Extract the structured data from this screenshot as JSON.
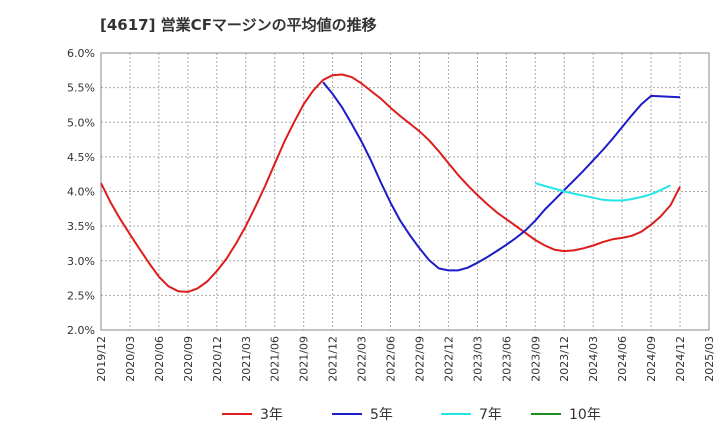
{
  "chart_data": {
    "type": "line",
    "title": "[4617]  営業CFマージンの平均値の推移",
    "xlabel": "",
    "ylabel": "",
    "ylim": [
      2.0,
      6.0
    ],
    "xlim": [
      "2019-12",
      "2025-03"
    ],
    "y_ticks": [
      "2.0%",
      "2.5%",
      "3.0%",
      "3.5%",
      "4.0%",
      "4.5%",
      "5.0%",
      "5.5%",
      "6.0%"
    ],
    "x_ticks": [
      "2019/12",
      "2020/03",
      "2020/06",
      "2020/09",
      "2020/12",
      "2021/03",
      "2021/06",
      "2021/09",
      "2021/12",
      "2022/03",
      "2022/06",
      "2022/09",
      "2022/12",
      "2023/03",
      "2023/06",
      "2023/09",
      "2023/12",
      "2024/03",
      "2024/06",
      "2024/09",
      "2024/12",
      "2025/03"
    ],
    "grid": true,
    "legend_position": "bottom",
    "series": [
      {
        "name": "3年",
        "color": "#dd1c1c",
        "points": [
          [
            "2019-12",
            4.12
          ],
          [
            "2020-01",
            3.84
          ],
          [
            "2020-02",
            3.6
          ],
          [
            "2020-03",
            3.38
          ],
          [
            "2020-04",
            3.17
          ],
          [
            "2020-05",
            2.96
          ],
          [
            "2020-06",
            2.77
          ],
          [
            "2020-07",
            2.63
          ],
          [
            "2020-08",
            2.56
          ],
          [
            "2020-09",
            2.55
          ],
          [
            "2020-10",
            2.6
          ],
          [
            "2020-11",
            2.7
          ],
          [
            "2020-12",
            2.85
          ],
          [
            "2021-01",
            3.03
          ],
          [
            "2021-02",
            3.25
          ],
          [
            "2021-03",
            3.5
          ],
          [
            "2021-04",
            3.78
          ],
          [
            "2021-05",
            4.08
          ],
          [
            "2021-06",
            4.4
          ],
          [
            "2021-07",
            4.72
          ],
          [
            "2021-08",
            5.0
          ],
          [
            "2021-09",
            5.26
          ],
          [
            "2021-10",
            5.46
          ],
          [
            "2021-11",
            5.61
          ],
          [
            "2021-12",
            5.68
          ],
          [
            "2022-01",
            5.69
          ],
          [
            "2022-02",
            5.65
          ],
          [
            "2022-03",
            5.56
          ],
          [
            "2022-04",
            5.45
          ],
          [
            "2022-05",
            5.34
          ],
          [
            "2022-06",
            5.21
          ],
          [
            "2022-07",
            5.09
          ],
          [
            "2022-08",
            4.98
          ],
          [
            "2022-09",
            4.87
          ],
          [
            "2022-10",
            4.74
          ],
          [
            "2022-11",
            4.58
          ],
          [
            "2022-12",
            4.41
          ],
          [
            "2023-01",
            4.24
          ],
          [
            "2023-02",
            4.09
          ],
          [
            "2023-03",
            3.95
          ],
          [
            "2023-04",
            3.82
          ],
          [
            "2023-05",
            3.7
          ],
          [
            "2023-06",
            3.6
          ],
          [
            "2023-07",
            3.5
          ],
          [
            "2023-08",
            3.4
          ],
          [
            "2023-09",
            3.3
          ],
          [
            "2023-10",
            3.22
          ],
          [
            "2023-11",
            3.16
          ],
          [
            "2023-12",
            3.14
          ],
          [
            "2024-01",
            3.15
          ],
          [
            "2024-02",
            3.18
          ],
          [
            "2024-03",
            3.22
          ],
          [
            "2024-04",
            3.27
          ],
          [
            "2024-05",
            3.31
          ],
          [
            "2024-06",
            3.33
          ],
          [
            "2024-07",
            3.36
          ],
          [
            "2024-08",
            3.42
          ],
          [
            "2024-09",
            3.52
          ],
          [
            "2024-10",
            3.64
          ],
          [
            "2024-11",
            3.8
          ],
          [
            "2024-12",
            4.07
          ]
        ]
      },
      {
        "name": "5年",
        "color": "#1c1cc8",
        "points": [
          [
            "2021-11",
            5.58
          ],
          [
            "2021-12",
            5.41
          ],
          [
            "2022-01",
            5.21
          ],
          [
            "2022-02",
            4.97
          ],
          [
            "2022-03",
            4.72
          ],
          [
            "2022-04",
            4.44
          ],
          [
            "2022-05",
            4.13
          ],
          [
            "2022-06",
            3.84
          ],
          [
            "2022-07",
            3.58
          ],
          [
            "2022-08",
            3.37
          ],
          [
            "2022-09",
            3.18
          ],
          [
            "2022-10",
            3.01
          ],
          [
            "2022-11",
            2.89
          ],
          [
            "2022-12",
            2.86
          ],
          [
            "2023-01",
            2.86
          ],
          [
            "2023-02",
            2.9
          ],
          [
            "2023-03",
            2.97
          ],
          [
            "2023-04",
            3.05
          ],
          [
            "2023-05",
            3.14
          ],
          [
            "2023-06",
            3.23
          ],
          [
            "2023-07",
            3.33
          ],
          [
            "2023-08",
            3.44
          ],
          [
            "2023-09",
            3.58
          ],
          [
            "2023-10",
            3.74
          ],
          [
            "2023-11",
            3.88
          ],
          [
            "2023-12",
            4.02
          ],
          [
            "2024-01",
            4.16
          ],
          [
            "2024-02",
            4.3
          ],
          [
            "2024-03",
            4.45
          ],
          [
            "2024-04",
            4.6
          ],
          [
            "2024-05",
            4.76
          ],
          [
            "2024-06",
            4.93
          ],
          [
            "2024-07",
            5.1
          ],
          [
            "2024-08",
            5.26
          ],
          [
            "2024-09",
            5.38
          ],
          [
            "2024-12",
            5.36
          ]
        ]
      },
      {
        "name": "7年",
        "color": "#22e5e5",
        "points": [
          [
            "2023-09",
            4.12
          ],
          [
            "2023-10",
            4.08
          ],
          [
            "2023-11",
            4.04
          ],
          [
            "2023-12",
            4.0
          ],
          [
            "2024-01",
            3.97
          ],
          [
            "2024-02",
            3.94
          ],
          [
            "2024-03",
            3.91
          ],
          [
            "2024-04",
            3.88
          ],
          [
            "2024-05",
            3.87
          ],
          [
            "2024-06",
            3.87
          ],
          [
            "2024-07",
            3.89
          ],
          [
            "2024-08",
            3.92
          ],
          [
            "2024-09",
            3.96
          ],
          [
            "2024-10",
            4.02
          ],
          [
            "2024-11",
            4.09
          ]
        ]
      },
      {
        "name": "10年",
        "color": "#1e8c1e",
        "points": []
      }
    ]
  }
}
